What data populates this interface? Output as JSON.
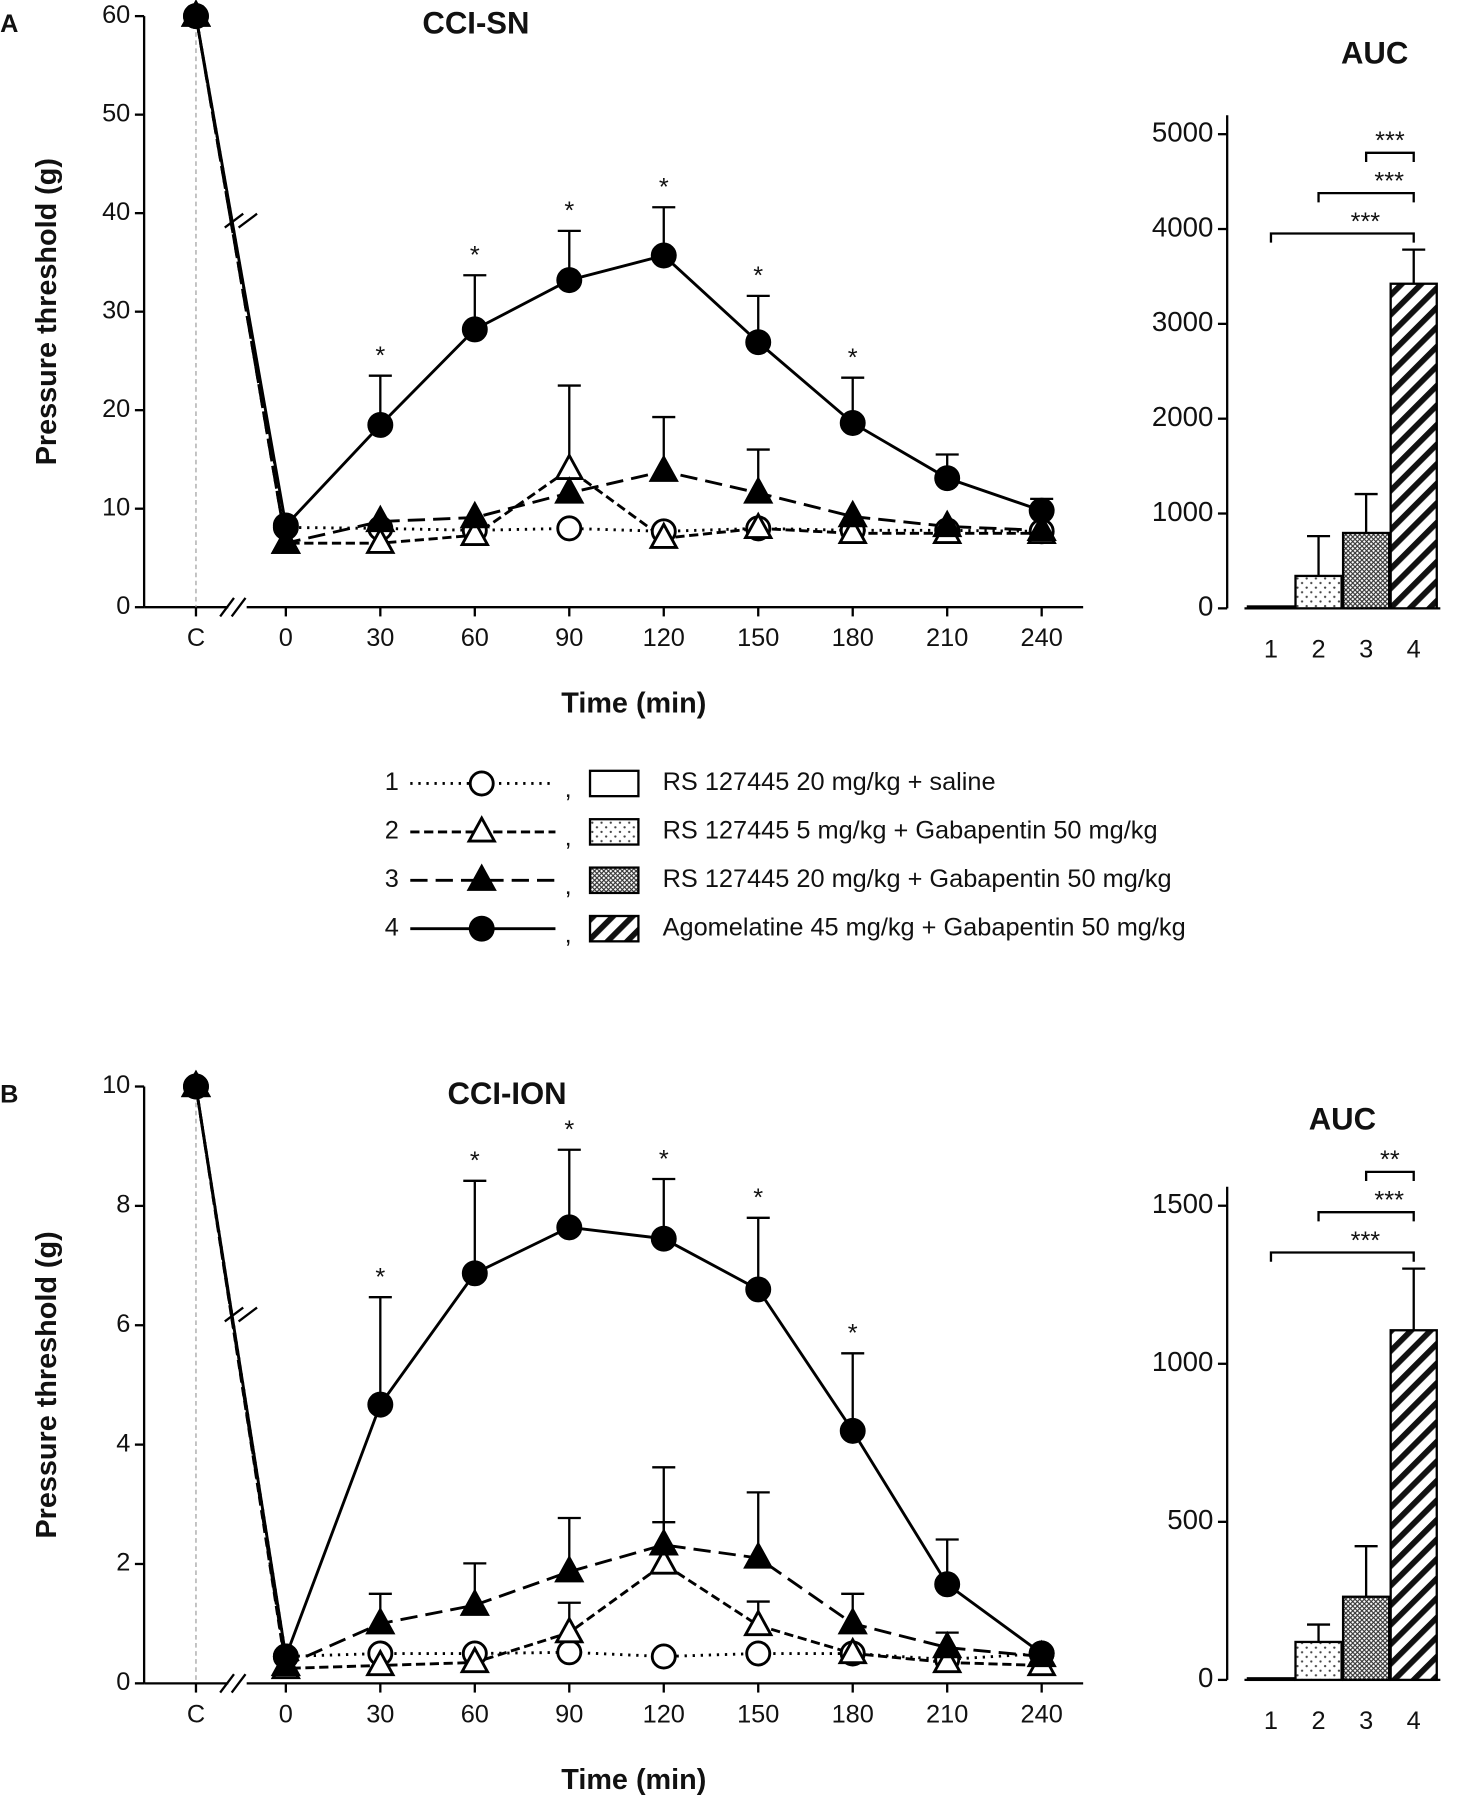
{
  "chart_data": [
    {
      "type": "line",
      "panel": "A",
      "title": "CCI-SN",
      "xlabel": "Time (min)",
      "ylabel": "Pressure threshold (g)",
      "categories": [
        "C",
        "0",
        "30",
        "60",
        "90",
        "120",
        "150",
        "180",
        "210",
        "240"
      ],
      "ylim": [
        0,
        60
      ],
      "yticks": [
        0,
        10,
        20,
        30,
        40,
        50,
        60
      ],
      "legend_separator": ",",
      "significance": [
        null,
        null,
        "*",
        "*",
        "*",
        "*",
        "*",
        "*",
        null,
        null
      ],
      "series": [
        {
          "number": "1",
          "name": "RS 127445 20 mg/kg + saline",
          "color": "#000",
          "line": "dotted",
          "marker": "circle",
          "filled": false,
          "values": [
            60,
            8.1,
            8.0,
            7.8,
            8.0,
            7.7,
            8.0,
            7.8,
            7.8,
            7.7
          ]
        },
        {
          "number": "2",
          "name": "RS 127445 5 mg/kg + Gabapentin 50 mg/kg",
          "color": "#000",
          "line": "dashed",
          "marker": "triangle",
          "filled": false,
          "values": [
            60,
            6.5,
            6.5,
            7.3,
            14.0,
            7.0,
            8.0,
            7.5,
            7.5,
            7.5
          ],
          "errors": [
            null,
            null,
            null,
            null,
            8.5,
            null,
            null,
            null,
            null,
            null
          ]
        },
        {
          "number": "3",
          "name": "RS 127445 20 mg/kg + Gabapentin 50 mg/kg",
          "color": "#000",
          "line": "long-dashed",
          "marker": "triangle",
          "filled": true,
          "values": [
            60,
            6.5,
            8.7,
            9.1,
            11.6,
            13.8,
            11.6,
            9.2,
            8.2,
            7.8
          ],
          "errors": [
            null,
            null,
            null,
            null,
            null,
            5.5,
            4.4,
            null,
            null,
            null
          ]
        },
        {
          "number": "4",
          "name": "Agomelatine 45 mg/kg + Gabapentin 50 mg/kg",
          "color": "#000",
          "line": "solid",
          "marker": "circle",
          "filled": true,
          "values": [
            60,
            8.3,
            18.5,
            28.2,
            33.2,
            35.7,
            26.9,
            18.7,
            13.1,
            9.8
          ],
          "errors": [
            null,
            null,
            5.0,
            5.5,
            5.0,
            4.9,
            4.7,
            4.6,
            2.4,
            1.2
          ]
        }
      ]
    },
    {
      "type": "bar",
      "title": "AUC",
      "categories": [
        "1",
        "2",
        "3",
        "4"
      ],
      "values": [
        20,
        342,
        795,
        3423
      ],
      "errors": [
        null,
        420,
        410,
        360
      ],
      "ylim": [
        0,
        5200
      ],
      "yticks": [
        0,
        1000,
        2000,
        3000,
        4000,
        5000
      ],
      "comparisons": [
        {
          "groups": [
            "1",
            "4"
          ],
          "label": "***"
        },
        {
          "groups": [
            "2",
            "4"
          ],
          "label": "***"
        },
        {
          "groups": [
            "3",
            "4"
          ],
          "label": "***"
        }
      ]
    },
    {
      "type": "line",
      "panel": "B",
      "title": "CCI-ION",
      "xlabel": "Time (min)",
      "ylabel": "Pressure threshold (g)",
      "categories": [
        "C",
        "0",
        "30",
        "60",
        "90",
        "120",
        "150",
        "180",
        "210",
        "240"
      ],
      "ylim": [
        0,
        10
      ],
      "yticks": [
        0,
        2,
        4,
        6,
        8,
        10
      ],
      "significance": [
        null,
        null,
        "*",
        "*",
        "*",
        "*",
        "*",
        "*",
        null,
        null
      ],
      "series": [
        {
          "color": "#000",
          "line": "dotted",
          "marker": "circle",
          "filled": false,
          "values": [
            10,
            0.45,
            0.5,
            0.5,
            0.52,
            0.45,
            0.5,
            0.5,
            0.4,
            0.5
          ]
        },
        {
          "color": "#000",
          "line": "dashed",
          "marker": "triangle",
          "filled": false,
          "values": [
            10,
            0.25,
            0.3,
            0.35,
            0.85,
            2.0,
            0.97,
            0.5,
            0.35,
            0.3
          ],
          "errors": [
            null,
            null,
            null,
            null,
            0.5,
            0.7,
            0.4,
            null,
            null,
            null
          ]
        },
        {
          "color": "#000",
          "line": "long-dashed",
          "marker": "triangle",
          "filled": true,
          "values": [
            10,
            0.3,
            1.0,
            1.31,
            1.87,
            2.32,
            2.1,
            1.0,
            0.6,
            0.45
          ],
          "errors": [
            null,
            null,
            0.5,
            0.7,
            0.9,
            1.3,
            1.1,
            0.5,
            0.25,
            null
          ]
        },
        {
          "color": "#000",
          "line": "solid",
          "marker": "circle",
          "filled": true,
          "values": [
            10,
            0.45,
            4.67,
            6.87,
            7.64,
            7.45,
            6.6,
            4.23,
            1.66,
            0.5
          ],
          "errors": [
            null,
            null,
            1.8,
            1.55,
            1.3,
            1.0,
            1.2,
            1.3,
            0.75,
            null
          ]
        }
      ]
    },
    {
      "type": "bar",
      "title": "AUC",
      "categories": [
        "1",
        "2",
        "3",
        "4"
      ],
      "values": [
        5,
        120,
        263,
        1106
      ],
      "errors": [
        null,
        55,
        160,
        195
      ],
      "ylim": [
        0,
        1560
      ],
      "yticks": [
        0,
        500,
        1000,
        1500
      ],
      "comparisons": [
        {
          "groups": [
            "1",
            "4"
          ],
          "label": "***"
        },
        {
          "groups": [
            "2",
            "4"
          ],
          "label": "***"
        },
        {
          "groups": [
            "3",
            "4"
          ],
          "label": "**"
        }
      ]
    }
  ]
}
